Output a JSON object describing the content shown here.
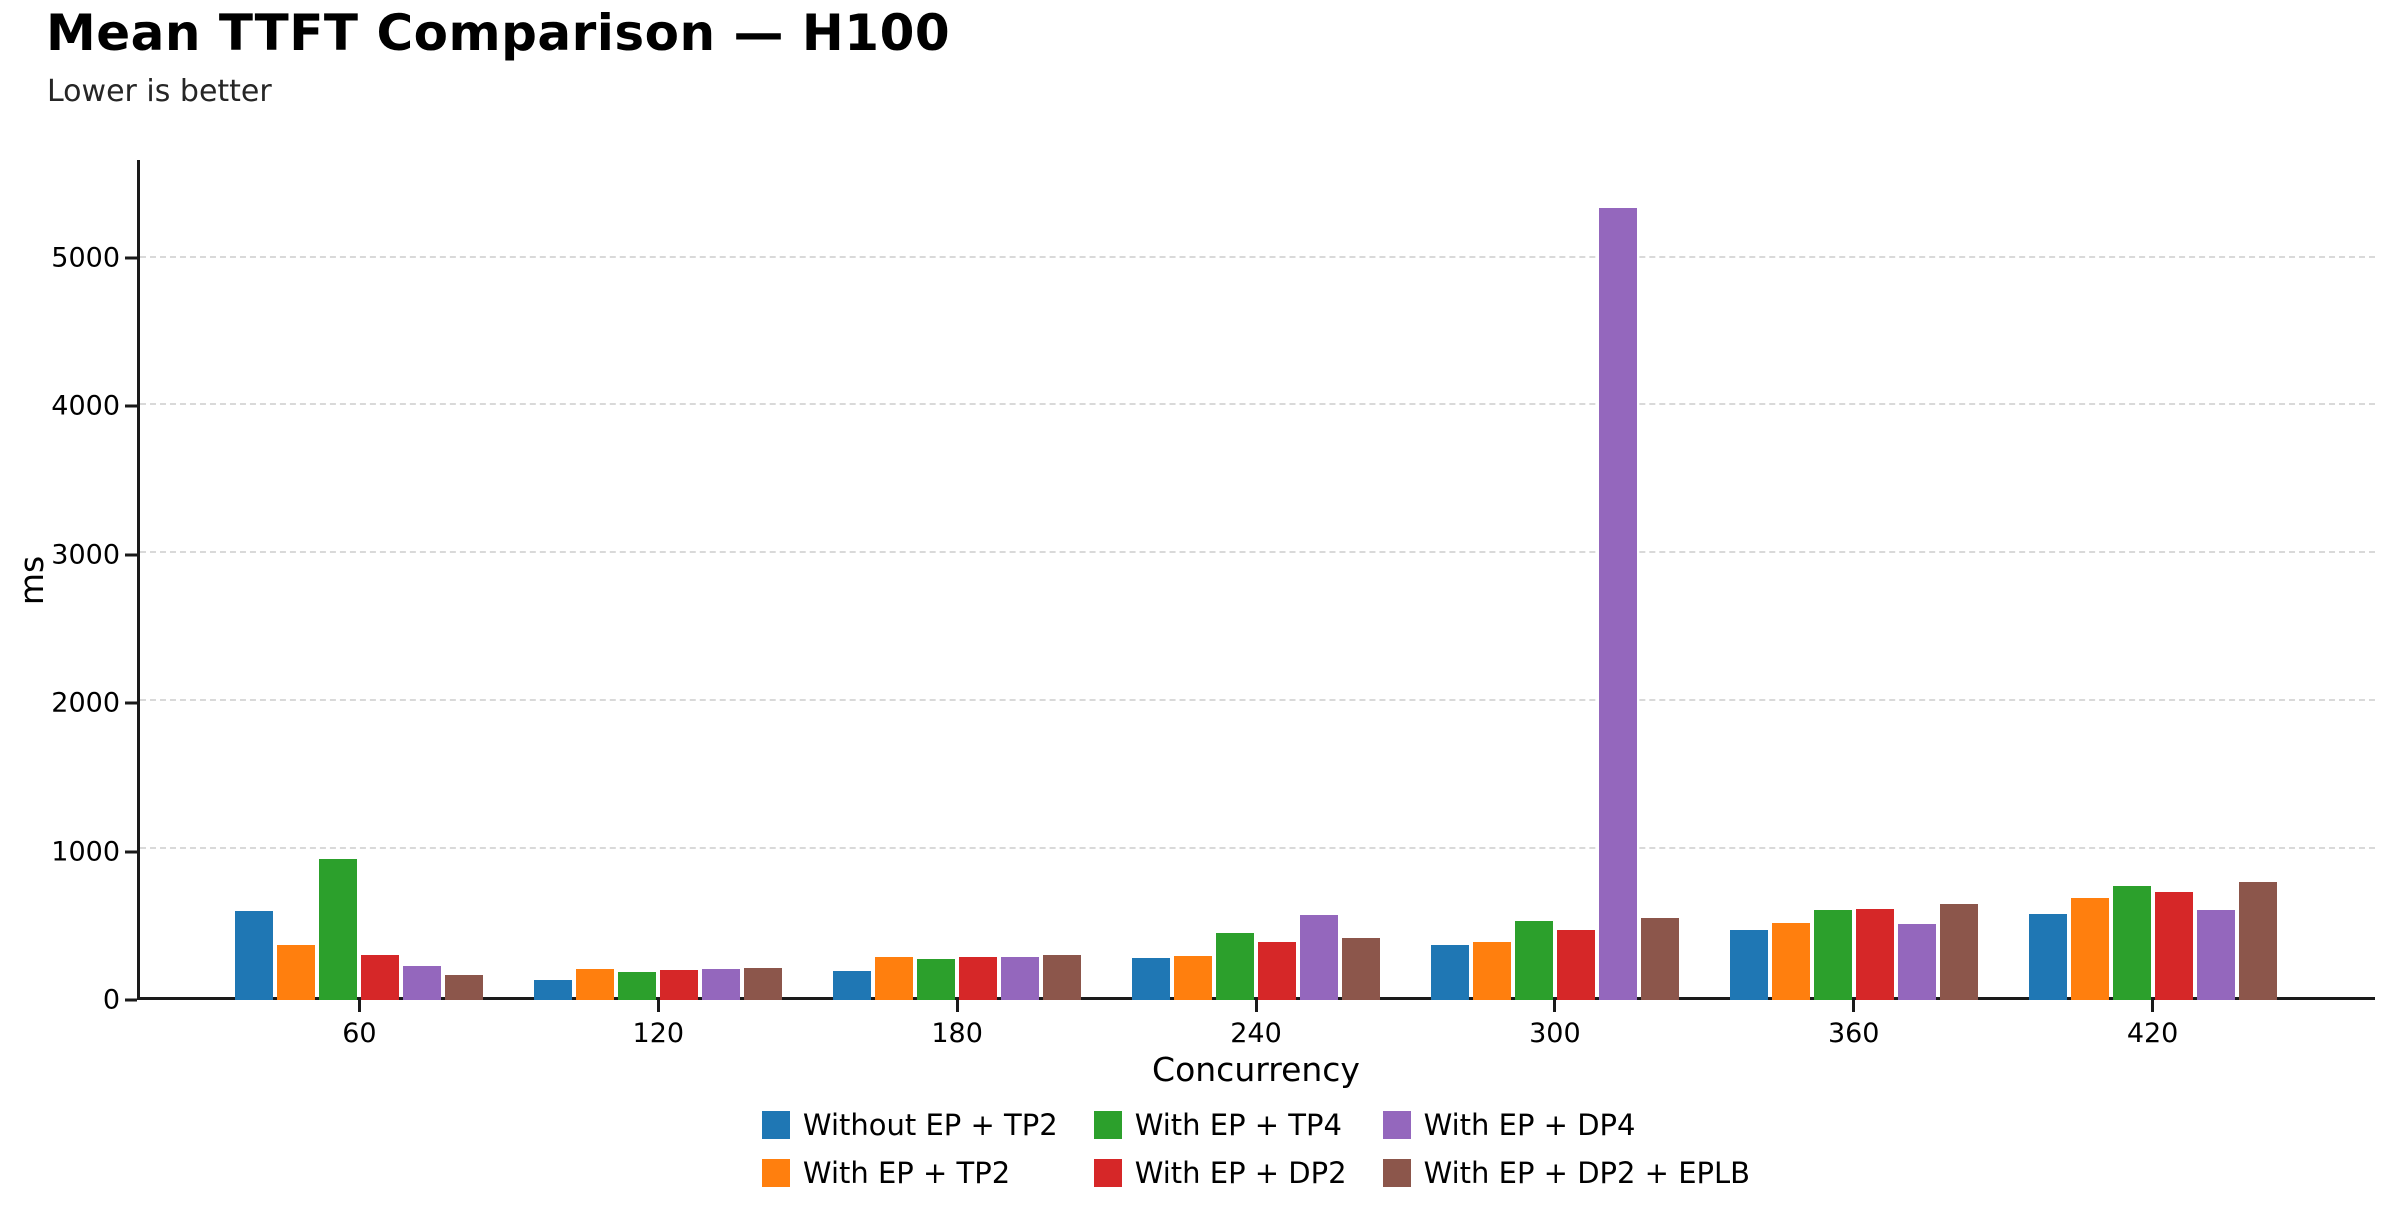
{
  "chart_data": {
    "type": "bar",
    "title": "Mean TTFT Comparison — H100",
    "subtitle": "Lower is better",
    "xlabel": "Concurrency",
    "ylabel": "ms",
    "categories": [
      "60",
      "120",
      "180",
      "240",
      "300",
      "360",
      "420"
    ],
    "yticks": [
      0,
      1000,
      2000,
      3000,
      4000,
      5000
    ],
    "ylim": [
      0,
      5660
    ],
    "grid": "horizontal-dashed",
    "legend_position": "bottom-center",
    "legend_columns": 3,
    "series": [
      {
        "name": "Without EP + TP2",
        "color": "#1f77b4",
        "values": [
          600,
          135,
          195,
          280,
          370,
          470,
          580
        ]
      },
      {
        "name": "With EP + TP2",
        "color": "#ff7f0e",
        "values": [
          370,
          210,
          290,
          295,
          390,
          520,
          685
        ]
      },
      {
        "name": "With EP + TP4",
        "color": "#2ca02c",
        "values": [
          950,
          190,
          275,
          450,
          535,
          605,
          770
        ]
      },
      {
        "name": "With EP + DP2",
        "color": "#d62728",
        "values": [
          300,
          205,
          290,
          390,
          475,
          615,
          725
        ]
      },
      {
        "name": "With EP + DP4",
        "color": "#9467bd",
        "values": [
          230,
          210,
          290,
          570,
          5340,
          515,
          605
        ]
      },
      {
        "name": "With EP + DP2 + EPLB",
        "color": "#8c564b",
        "values": [
          170,
          215,
          305,
          415,
          550,
          645,
          795
        ]
      }
    ],
    "colors": {
      "grid": "#d9d9d9",
      "spine": "#1a1a1a",
      "background": "#ffffff"
    }
  }
}
